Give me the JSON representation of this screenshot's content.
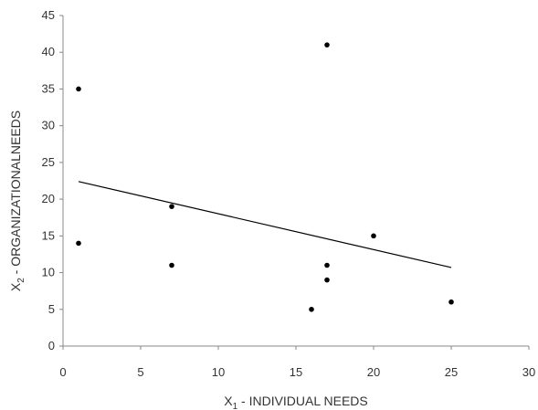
{
  "chart_data": {
    "type": "scatter",
    "title": "",
    "xlabel": "X1 - INDIVIDUAL NEEDS",
    "xlabel_parts": {
      "prefix": "X",
      "subscript": "1",
      "suffix": " - INDIVIDUAL NEEDS"
    },
    "ylabel": "X2 - ORGANIZATIONALNEEDS",
    "ylabel_parts": {
      "prefix": "X",
      "subscript": "2",
      "suffix": " - ORGANIZATIONALNEEDS"
    },
    "xlim": [
      0,
      30
    ],
    "ylim": [
      0,
      45
    ],
    "xticks": [
      0,
      5,
      10,
      15,
      20,
      25,
      30
    ],
    "yticks": [
      0,
      5,
      10,
      15,
      20,
      25,
      30,
      35,
      40,
      45
    ],
    "grid": false,
    "legend": "none",
    "points": [
      {
        "x": 1,
        "y": 35
      },
      {
        "x": 1,
        "y": 14
      },
      {
        "x": 7,
        "y": 19
      },
      {
        "x": 7,
        "y": 11
      },
      {
        "x": 16,
        "y": 5
      },
      {
        "x": 17,
        "y": 41
      },
      {
        "x": 17,
        "y": 11
      },
      {
        "x": 17,
        "y": 9
      },
      {
        "x": 20,
        "y": 15
      },
      {
        "x": 25,
        "y": 6
      }
    ],
    "trendline": {
      "x": [
        1,
        25
      ],
      "y": [
        22.4,
        10.7
      ]
    },
    "colors": {
      "points": "#000000",
      "trendline": "#000000",
      "axis": "#888888",
      "text": "#333333"
    }
  }
}
